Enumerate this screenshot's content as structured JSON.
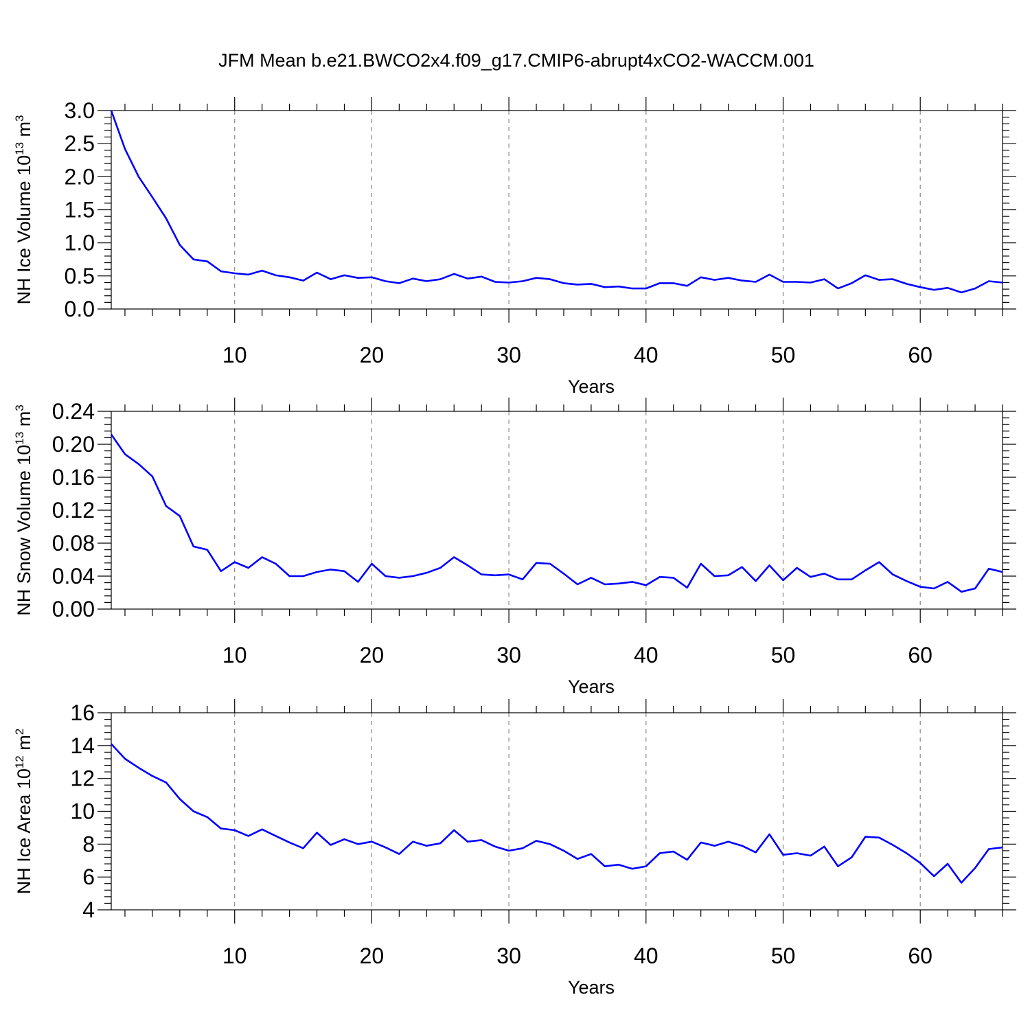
{
  "figure": {
    "title": "JFM Mean b.e21.BWCO2x4.f09_g17.CMIP6-abrupt4xCO2-WACCM.001"
  },
  "chart_data": [
    {
      "type": "line",
      "title": "",
      "xlabel": "Years",
      "ylabel": {
        "text": "NH Ice Volume 10",
        "sup1": "13",
        "mid": " m",
        "sup2": "3"
      },
      "xlim": [
        1,
        66
      ],
      "ylim": [
        0.0,
        3.0
      ],
      "x_major_ticks": [
        10,
        20,
        30,
        40,
        50,
        60
      ],
      "y_major_ticks": [
        0.0,
        0.5,
        1.0,
        1.5,
        2.0,
        2.5,
        3.0
      ],
      "y_tick_labels": [
        "0.0",
        "0.5",
        "1.0",
        "1.5",
        "2.0",
        "2.5",
        "3.0"
      ],
      "grid": "vertical dashed at major x ticks",
      "color": "#0000ff",
      "x_start": 1,
      "values": [
        3.0,
        2.42,
        2.0,
        1.69,
        1.37,
        0.97,
        0.75,
        0.72,
        0.57,
        0.54,
        0.52,
        0.58,
        0.51,
        0.48,
        0.43,
        0.55,
        0.45,
        0.51,
        0.47,
        0.48,
        0.42,
        0.39,
        0.46,
        0.42,
        0.45,
        0.53,
        0.46,
        0.49,
        0.41,
        0.4,
        0.42,
        0.47,
        0.45,
        0.39,
        0.37,
        0.38,
        0.33,
        0.34,
        0.31,
        0.31,
        0.39,
        0.39,
        0.35,
        0.48,
        0.44,
        0.47,
        0.43,
        0.41,
        0.52,
        0.41,
        0.41,
        0.4,
        0.45,
        0.31,
        0.39,
        0.51,
        0.44,
        0.45,
        0.38,
        0.33,
        0.29,
        0.32,
        0.25,
        0.31,
        0.42,
        0.4
      ]
    },
    {
      "type": "line",
      "title": "",
      "xlabel": "Years",
      "ylabel": {
        "text": "NH Snow Volume 10",
        "sup1": "13",
        "mid": " m",
        "sup2": "3"
      },
      "xlim": [
        1,
        66
      ],
      "ylim": [
        0.0,
        0.24
      ],
      "x_major_ticks": [
        10,
        20,
        30,
        40,
        50,
        60
      ],
      "y_major_ticks": [
        0.0,
        0.04,
        0.08,
        0.12,
        0.16,
        0.2,
        0.24
      ],
      "y_tick_labels": [
        "0.00",
        "0.04",
        "0.08",
        "0.12",
        "0.16",
        "0.20",
        "0.24"
      ],
      "grid": "vertical dashed at major x ticks",
      "color": "#0000ff",
      "x_start": 1,
      "values": [
        0.212,
        0.188,
        0.176,
        0.161,
        0.125,
        0.113,
        0.076,
        0.072,
        0.046,
        0.057,
        0.05,
        0.063,
        0.055,
        0.04,
        0.04,
        0.045,
        0.048,
        0.046,
        0.033,
        0.055,
        0.04,
        0.038,
        0.04,
        0.044,
        0.05,
        0.063,
        0.053,
        0.042,
        0.041,
        0.042,
        0.036,
        0.056,
        0.055,
        0.043,
        0.03,
        0.038,
        0.03,
        0.031,
        0.033,
        0.029,
        0.039,
        0.038,
        0.026,
        0.055,
        0.04,
        0.041,
        0.051,
        0.034,
        0.053,
        0.035,
        0.05,
        0.039,
        0.043,
        0.036,
        0.036,
        0.047,
        0.057,
        0.042,
        0.034,
        0.027,
        0.025,
        0.033,
        0.021,
        0.025,
        0.049,
        0.045
      ]
    },
    {
      "type": "line",
      "title": "",
      "xlabel": "Years",
      "ylabel": {
        "text": "NH Ice Area 10",
        "sup1": "12",
        "mid": " m",
        "sup2": "2"
      },
      "xlim": [
        1,
        66
      ],
      "ylim": [
        4,
        16
      ],
      "x_major_ticks": [
        10,
        20,
        30,
        40,
        50,
        60
      ],
      "y_major_ticks": [
        4,
        6,
        8,
        10,
        12,
        14,
        16
      ],
      "y_tick_labels": [
        "4",
        "6",
        "8",
        "10",
        "12",
        "14",
        "16"
      ],
      "grid": "vertical dashed at major x ticks",
      "color": "#0000ff",
      "x_start": 1,
      "values": [
        14.1,
        13.2,
        12.65,
        12.15,
        11.75,
        10.75,
        10.0,
        9.65,
        8.95,
        8.85,
        8.5,
        8.9,
        8.5,
        8.1,
        7.75,
        8.7,
        7.95,
        8.3,
        8.0,
        8.15,
        7.8,
        7.4,
        8.15,
        7.9,
        8.05,
        8.85,
        8.15,
        8.25,
        7.85,
        7.6,
        7.75,
        8.2,
        8.0,
        7.6,
        7.1,
        7.4,
        6.65,
        6.75,
        6.5,
        6.65,
        7.45,
        7.55,
        7.05,
        8.1,
        7.9,
        8.15,
        7.9,
        7.5,
        8.6,
        7.35,
        7.45,
        7.3,
        7.85,
        6.65,
        7.2,
        8.45,
        8.4,
        7.95,
        7.45,
        6.85,
        6.05,
        6.8,
        5.65,
        6.55,
        7.7,
        7.8
      ]
    }
  ]
}
